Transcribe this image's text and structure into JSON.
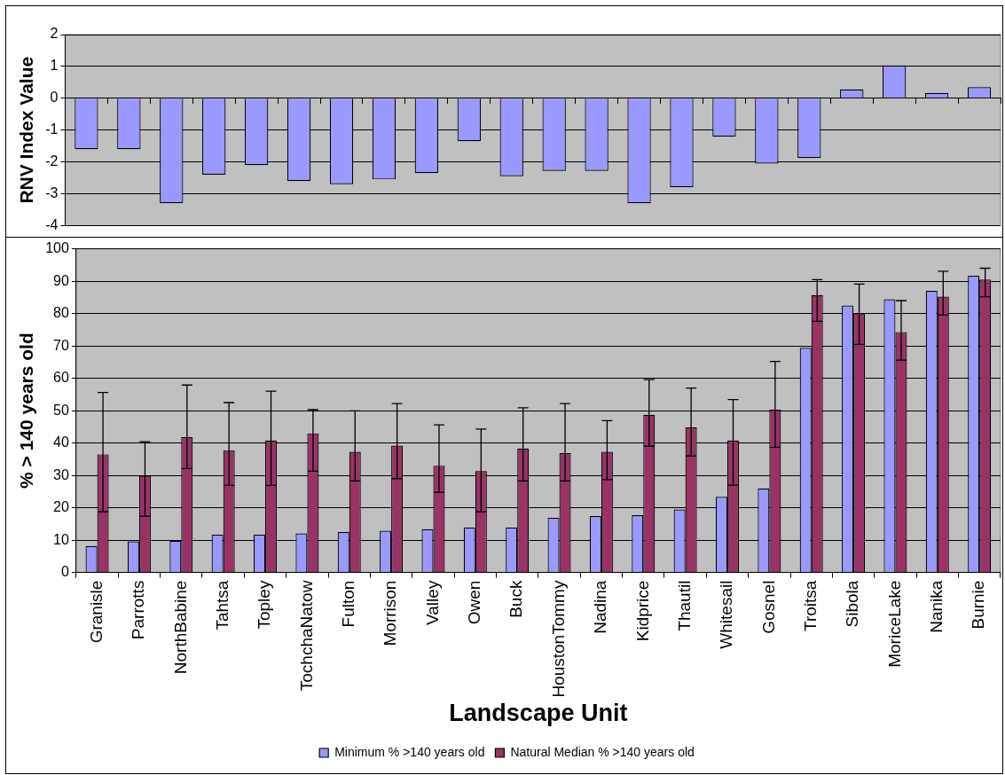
{
  "chart_data": [
    {
      "type": "bar",
      "ylabel": "RNV Index Value",
      "categories": [
        null,
        null,
        null,
        null,
        null,
        null,
        null,
        null,
        null,
        null,
        null,
        null,
        null,
        null,
        null,
        null,
        null,
        null,
        null,
        null,
        null,
        null
      ],
      "values": [
        -1.6,
        -1.6,
        -3.3,
        -2.4,
        -2.1,
        -2.6,
        -2.7,
        -2.55,
        -2.35,
        -1.35,
        -2.45,
        -2.28,
        -2.28,
        -3.3,
        -2.8,
        -1.2,
        -2.05,
        -1.88,
        0.28,
        1.03,
        0.17,
        0.35
      ],
      "color": "#9999ff",
      "ylim": [
        -4,
        2
      ],
      "yticks": [
        -4,
        -3,
        -2,
        -1,
        0,
        1,
        2
      ],
      "grid": "y",
      "tick_labels": "y",
      "legend": false
    },
    {
      "type": "bar",
      "xlabel": "Landscape Unit",
      "ylabel": "% > 140 years old",
      "categories": [
        "Granisle",
        "Parrotts",
        "NorthBabine",
        "Tahtsa",
        "Topley",
        "TochchaNatow",
        "Fulton",
        "Morrison",
        "Valley",
        "Owen",
        "Buck",
        "HoustonTommy",
        "Nadina",
        "Kidprice",
        "Thautil",
        "Whitesail",
        "Gosnel",
        "Troitsa",
        "Sibola",
        "MoriceLake",
        "Nanika",
        "Burnie"
      ],
      "series": [
        {
          "name": "Minimum % >140 years old",
          "color": "#9999ff",
          "values": [
            8.2,
            9.6,
            9.8,
            11.7,
            11.7,
            12.1,
            12.5,
            12.9,
            13.4,
            13.9,
            13.9,
            16.9,
            17.4,
            17.7,
            19.5,
            23.4,
            26,
            69.4,
            82.5,
            84.4,
            87,
            91.7
          ]
        },
        {
          "name": "Natural Median % >140 years old",
          "color": "#993366",
          "values": [
            36.5,
            29.9,
            41.8,
            37.8,
            40.8,
            43,
            37.3,
            39.2,
            33,
            31.3,
            38.3,
            36.9,
            37.3,
            48.7,
            44.8,
            40.8,
            50.3,
            85.7,
            80,
            74.3,
            85.2,
            90.5
          ],
          "errors": [
            [
              18.8,
              55.6
            ],
            [
              17.4,
              40.4
            ],
            [
              32.1,
              57.9
            ],
            [
              26.9,
              52.5
            ],
            [
              26.9,
              56
            ],
            [
              31.3,
              50.3
            ],
            [
              28.3,
              49.9
            ],
            [
              29,
              52.2
            ],
            [
              24.8,
              45.6
            ],
            [
              18.8,
              44.3
            ],
            [
              28.3,
              50.9
            ],
            [
              28.3,
              52.2
            ],
            [
              28.7,
              46.9
            ],
            [
              39,
              59.6
            ],
            [
              36,
              57
            ],
            [
              27,
              53.4
            ],
            [
              38.7,
              65.2
            ],
            [
              77.6,
              90.5
            ],
            [
              70.5,
              89.1
            ],
            [
              65.6,
              84
            ],
            [
              79.6,
              93.1
            ],
            [
              85.2,
              94
            ]
          ]
        }
      ],
      "ylim": [
        0,
        100
      ],
      "yticks": [
        0,
        10,
        20,
        30,
        40,
        50,
        60,
        70,
        80,
        90,
        100
      ],
      "grid": "y",
      "legend": "bottom"
    }
  ]
}
